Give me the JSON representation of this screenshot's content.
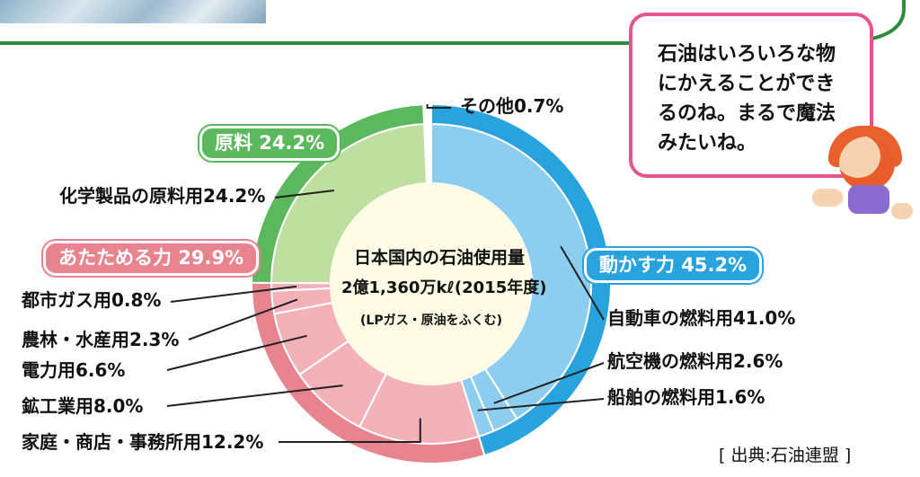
{
  "chart_data": {
    "type": "pie",
    "title": "日本国内の石油使用量",
    "subtitle": "2億1,360万kℓ(2015年度)",
    "note": "(LPガス・原油をふくむ)",
    "groups": [
      {
        "name": "動かす力",
        "value": 45.2,
        "label": "動かす力 45.2%",
        "color": "#29a3dd",
        "ring_color": "#8dcdf0"
      },
      {
        "name": "あたためる力",
        "value": 29.9,
        "label": "あたためる力 29.9%",
        "color": "#e8848f",
        "ring_color": "#f3b1b8"
      },
      {
        "name": "原料",
        "value": 24.2,
        "label": "原料 24.2%",
        "color": "#5cb85c",
        "ring_color": "#bedf9e"
      },
      {
        "name": "その他",
        "value": 0.7,
        "label": "その他0.7%",
        "color": "#ffffff",
        "ring_color": "#ffffff"
      }
    ],
    "categories": [
      "自動車の燃料用",
      "航空機の燃料用",
      "船舶の燃料用",
      "家庭・商店・事務所用",
      "鉱工業用",
      "電力用",
      "農林・水産用",
      "都市ガス用",
      "化学製品の原料用",
      "その他"
    ],
    "values": [
      41.0,
      2.6,
      1.6,
      12.2,
      8.0,
      6.6,
      2.3,
      0.8,
      24.2,
      0.7
    ],
    "group_of": [
      "動かす力",
      "動かす力",
      "動かす力",
      "あたためる力",
      "あたためる力",
      "あたためる力",
      "あたためる力",
      "あたためる力",
      "原料",
      "その他"
    ],
    "labels": [
      "自動車の燃料用41.0%",
      "航空機の燃料用2.6%",
      "船舶の燃料用1.6%",
      "家庭・商店・事務所用12.2%",
      "鉱工業用8.0%",
      "電力用6.6%",
      "農林・水産用2.3%",
      "都市ガス用0.8%",
      "化学製品の原料用24.2%",
      "その他0.7%"
    ],
    "legend": "none"
  },
  "bubble": {
    "lines": [
      "石油はいろいろな物",
      "にかえることができ",
      "るのね。まるで魔法",
      "みたいね。"
    ]
  },
  "source": "[ 出典:石油連盟 ]",
  "colors": {
    "frame": "#2e8b3a",
    "bubble_border": "#e5548f"
  }
}
